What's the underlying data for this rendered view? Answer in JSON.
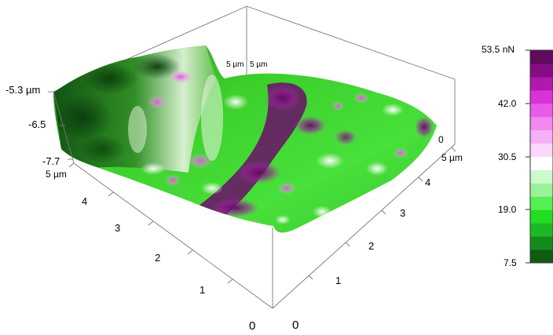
{
  "chart_data": {
    "type": "surface3d",
    "title": "",
    "z_axis": {
      "unit": "µm",
      "range": [
        -7.7,
        -5.3
      ],
      "ticks": [
        "-5.3 µm",
        "-6.5",
        "-7.7"
      ]
    },
    "x_axis": {
      "range": [
        0,
        5
      ],
      "ticks": [
        "0",
        "1",
        "2",
        "3",
        "4",
        "5 µm"
      ]
    },
    "y_axis": {
      "range": [
        0,
        5
      ],
      "ticks": [
        "0",
        "1",
        "2",
        "3",
        "4",
        "5 µm"
      ]
    },
    "top_corner_labels": [
      "5 µm",
      "5 µm"
    ],
    "colorbar": {
      "unit": "nN",
      "range": [
        7.5,
        53.5
      ],
      "ticks": [
        "53.5 nN",
        "42.0",
        "30.5",
        "19.0",
        "7.5"
      ],
      "colors": [
        "#0d5c14",
        "#148a1c",
        "#1db825",
        "#22dd22",
        "#55ee55",
        "#99f499",
        "#ccfacc",
        "#ffffff",
        "#fbd8fb",
        "#f7b0f7",
        "#f088f0",
        "#e85ae8",
        "#d932d9",
        "#b018b0",
        "#860c86",
        "#5e0a5e"
      ]
    },
    "surface": {
      "features": "ridge along the back-left edge, diagonal valley with dark purple force band across the middle, flatter plateau on the right",
      "force_colormap": "green (low) to white to purple (high)"
    }
  }
}
